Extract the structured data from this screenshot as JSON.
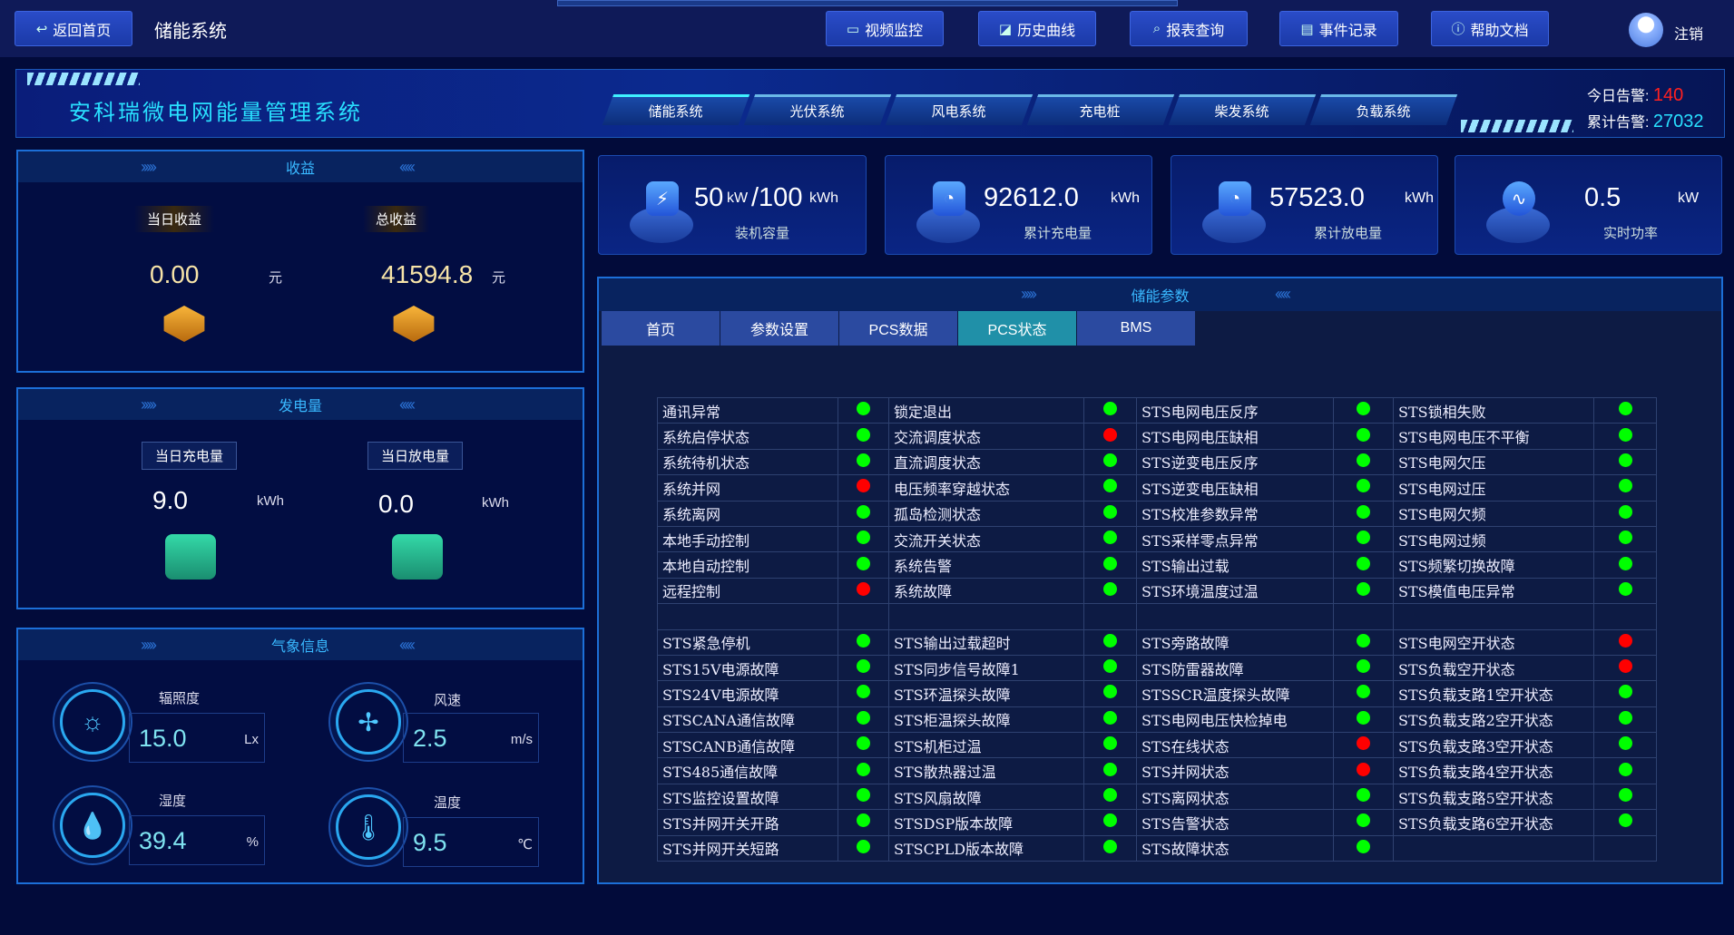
{
  "topbar": {
    "back_label": "返回首页",
    "page_title": "储能系统",
    "nav": [
      {
        "label": "视频监控",
        "icon": "video-icon"
      },
      {
        "label": "历史曲线",
        "icon": "chart-icon"
      },
      {
        "label": "报表查询",
        "icon": "search-icon"
      },
      {
        "label": "事件记录",
        "icon": "document-icon"
      },
      {
        "label": "帮助文档",
        "icon": "help-icon"
      }
    ],
    "logout_label": "注销"
  },
  "header": {
    "title": "安科瑞微电网能量管理系统",
    "tabs": [
      "储能系统",
      "光伏系统",
      "风电系统",
      "充电桩",
      "柴发系统",
      "负载系统"
    ],
    "active_tab": 0,
    "today_alarm_label": "今日告警:",
    "today_alarm": "140",
    "total_alarm_label": "累计告警:",
    "total_alarm": "27032",
    "colors": {
      "today_alarm": "#ff2020",
      "total_alarm": "#29e0ff"
    }
  },
  "income": {
    "title": "收益",
    "today_label": "当日收益",
    "today_value": "0.00",
    "total_label": "总收益",
    "total_value": "41594.8",
    "unit": "元"
  },
  "energy": {
    "title": "发电量",
    "charge_label": "当日充电量",
    "charge_value": "9.0",
    "discharge_label": "当日放电量",
    "discharge_value": "0.0",
    "unit": "kWh"
  },
  "weather": {
    "title": "气象信息",
    "items": [
      {
        "label": "辐照度",
        "value": "15.0",
        "unit": "Lx",
        "icon": "sun-icon"
      },
      {
        "label": "风速",
        "value": "2.5",
        "unit": "m/s",
        "icon": "fan-icon"
      },
      {
        "label": "湿度",
        "value": "39.4",
        "unit": "%",
        "icon": "droplet-icon"
      },
      {
        "label": "温度",
        "value": "9.5",
        "unit": "℃",
        "icon": "thermometer-icon"
      }
    ]
  },
  "cards": [
    {
      "value": "50",
      "unit": "kW",
      "value2": "/100",
      "unit2": "kWh",
      "label": "装机容量"
    },
    {
      "value": "92612.0",
      "unit": "kWh",
      "label": "累计充电量"
    },
    {
      "value": "57523.0",
      "unit": "kWh",
      "label": "累计放电量"
    },
    {
      "value": "0.5",
      "unit": "kW",
      "label": "实时功率"
    }
  ],
  "params": {
    "title": "储能参数",
    "tabs": [
      "首页",
      "参数设置",
      "PCS数据",
      "PCS状态",
      "BMS"
    ],
    "active_tab": 3,
    "status_colors": {
      "ok": "#00ff00",
      "alarm": "#ff0000"
    },
    "rows": [
      [
        [
          "通讯异常",
          "ok"
        ],
        [
          "锁定退出",
          "ok"
        ],
        [
          "STS电网电压反序",
          "ok"
        ],
        [
          "STS锁相失败",
          "ok"
        ]
      ],
      [
        [
          "系统启停状态",
          "ok"
        ],
        [
          "交流调度状态",
          "alarm"
        ],
        [
          "STS电网电压缺相",
          "ok"
        ],
        [
          "STS电网电压不平衡",
          "ok"
        ]
      ],
      [
        [
          "系统待机状态",
          "ok"
        ],
        [
          "直流调度状态",
          "ok"
        ],
        [
          "STS逆变电压反序",
          "ok"
        ],
        [
          "STS电网欠压",
          "ok"
        ]
      ],
      [
        [
          "系统并网",
          "alarm"
        ],
        [
          "电压频率穿越状态",
          "ok"
        ],
        [
          "STS逆变电压缺相",
          "ok"
        ],
        [
          "STS电网过压",
          "ok"
        ]
      ],
      [
        [
          "系统离网",
          "ok"
        ],
        [
          "孤岛检测状态",
          "ok"
        ],
        [
          "STS校准参数异常",
          "ok"
        ],
        [
          "STS电网欠频",
          "ok"
        ]
      ],
      [
        [
          "本地手动控制",
          "ok"
        ],
        [
          "交流开关状态",
          "ok"
        ],
        [
          "STS采样零点异常",
          "ok"
        ],
        [
          "STS电网过频",
          "ok"
        ]
      ],
      [
        [
          "本地自动控制",
          "ok"
        ],
        [
          "系统告警",
          "ok"
        ],
        [
          "STS输出过载",
          "ok"
        ],
        [
          "STS频繁切换故障",
          "ok"
        ]
      ],
      [
        [
          "远程控制",
          "alarm"
        ],
        [
          "系统故障",
          "ok"
        ],
        [
          "STS环境温度过温",
          "ok"
        ],
        [
          "STS模值电压异常",
          "ok"
        ]
      ],
      [
        [
          "",
          ""
        ],
        [
          "",
          ""
        ],
        [
          "",
          ""
        ],
        [
          "",
          ""
        ]
      ],
      [
        [
          "STS紧急停机",
          "ok"
        ],
        [
          "STS输出过载超时",
          "ok"
        ],
        [
          "STS旁路故障",
          "ok"
        ],
        [
          "STS电网空开状态",
          "alarm"
        ]
      ],
      [
        [
          "STS15V电源故障",
          "ok"
        ],
        [
          "STS同步信号故障1",
          "ok"
        ],
        [
          "STS防雷器故障",
          "ok"
        ],
        [
          "STS负载空开状态",
          "alarm"
        ]
      ],
      [
        [
          "STS24V电源故障",
          "ok"
        ],
        [
          "STS环温探头故障",
          "ok"
        ],
        [
          "STSSCR温度探头故障",
          "ok"
        ],
        [
          "STS负载支路1空开状态",
          "ok"
        ]
      ],
      [
        [
          "STSCANA通信故障",
          "ok"
        ],
        [
          "STS柜温探头故障",
          "ok"
        ],
        [
          "STS电网电压快检掉电",
          "ok"
        ],
        [
          "STS负载支路2空开状态",
          "ok"
        ]
      ],
      [
        [
          "STSCANB通信故障",
          "ok"
        ],
        [
          "STS机柜过温",
          "ok"
        ],
        [
          "STS在线状态",
          "alarm"
        ],
        [
          "STS负载支路3空开状态",
          "ok"
        ]
      ],
      [
        [
          "STS485通信故障",
          "ok"
        ],
        [
          "STS散热器过温",
          "ok"
        ],
        [
          "STS并网状态",
          "alarm"
        ],
        [
          "STS负载支路4空开状态",
          "ok"
        ]
      ],
      [
        [
          "STS监控设置故障",
          "ok"
        ],
        [
          "STS风扇故障",
          "ok"
        ],
        [
          "STS离网状态",
          "ok"
        ],
        [
          "STS负载支路5空开状态",
          "ok"
        ]
      ],
      [
        [
          "STS并网开关开路",
          "ok"
        ],
        [
          "STSDSP版本故障",
          "ok"
        ],
        [
          "STS告警状态",
          "ok"
        ],
        [
          "STS负载支路6空开状态",
          "ok"
        ]
      ],
      [
        [
          "STS并网开关短路",
          "ok"
        ],
        [
          "STSCPLD版本故障",
          "ok"
        ],
        [
          "STS故障状态",
          "ok"
        ],
        [
          "",
          ""
        ]
      ]
    ]
  }
}
